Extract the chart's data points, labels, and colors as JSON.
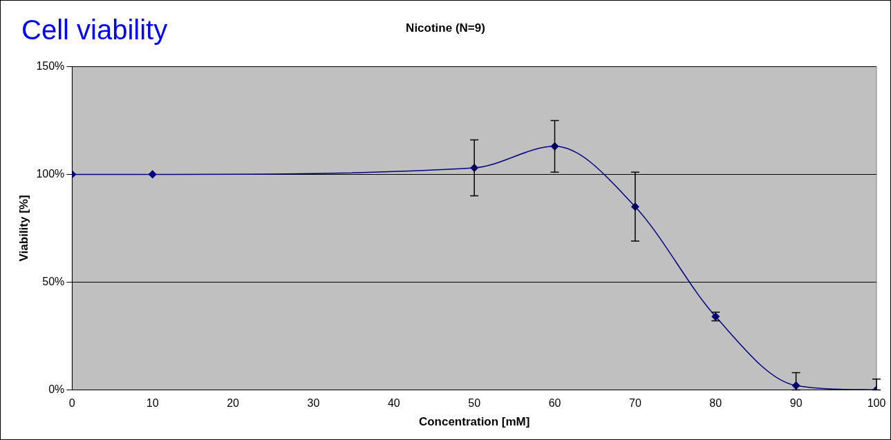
{
  "chart_data": {
    "type": "line",
    "title": "Cell viability",
    "subtitle": "Nicotine (N=9)",
    "xlabel": "Concentration [mM]",
    "ylabel": "Viability [%]",
    "x": [
      0,
      10,
      50,
      60,
      70,
      80,
      90,
      100
    ],
    "series": [
      {
        "color": "#000080",
        "values": [
          100,
          100,
          103,
          113,
          85,
          34,
          2,
          0
        ],
        "errors": [
          null,
          null,
          13,
          12,
          16,
          2,
          [
            0,
            8
          ],
          [
            0,
            5
          ]
        ]
      }
    ],
    "xlim": [
      0,
      100
    ],
    "xticks": [
      0,
      10,
      20,
      30,
      40,
      50,
      60,
      70,
      80,
      90,
      100
    ],
    "ylim": [
      0,
      150
    ],
    "yticks": [
      {
        "value": 0,
        "label": "0%"
      },
      {
        "value": 50,
        "label": "50%"
      },
      {
        "value": 100,
        "label": "100%"
      },
      {
        "value": 150,
        "label": "150%"
      }
    ],
    "grid": "y",
    "legend": false,
    "marker": "diamond",
    "line_style": "solid"
  }
}
